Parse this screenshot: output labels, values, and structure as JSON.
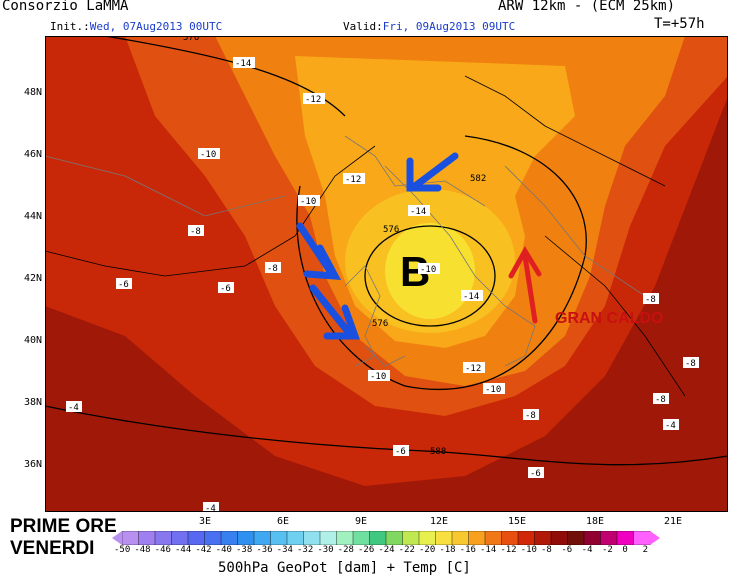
{
  "header": {
    "title": "Consorzio LaMMA",
    "model": "ARW 12km - (ECM 25km)",
    "init_label": "Init.:",
    "init_value": "Wed, 07Aug2013 00UTC",
    "valid_label": "Valid:",
    "valid_value": "Fri, 09Aug2013 09UTC",
    "forecast_step": "T=+57h"
  },
  "map": {
    "lat_labels": [
      "48N",
      "46N",
      "44N",
      "42N",
      "40N",
      "38N",
      "36N"
    ],
    "lon_labels": [
      "3E",
      "6E",
      "9E",
      "12E",
      "15E",
      "18E",
      "21E"
    ],
    "low_symbol": "B",
    "heat_label": "GRAN CALDO",
    "geopotential_labels": [
      "576",
      "576",
      "582",
      "576",
      "588"
    ],
    "temperature_labels": [
      "-14",
      "-12",
      "-10",
      "-12",
      "-10",
      "-14",
      "-8",
      "-8",
      "-6",
      "-6",
      "-10",
      "-14",
      "-12",
      "-10",
      "-10",
      "-4",
      "-4",
      "-6",
      "-8",
      "-6",
      "-8",
      "-8",
      "-4",
      "-8"
    ],
    "colors": {
      "low_core": "#f8e030",
      "ring1": "#f8c020",
      "ring2": "#f8a818",
      "mid": "#f08010",
      "warm": "#e05010",
      "hot": "#c82808",
      "hottest": "#a01808",
      "arrow_blue": "#1a50e0",
      "arrow_red": "#e02020"
    }
  },
  "note": {
    "line1": "PRIME ORE",
    "line2": "VENERDI"
  },
  "colorbar": {
    "title": "500hPa GeoPot [dam] + Temp [C]",
    "ticks": [
      "-50",
      "-48",
      "-46",
      "-44",
      "-42",
      "-40",
      "-38",
      "-36",
      "-34",
      "-32",
      "-30",
      "-28",
      "-26",
      "-24",
      "-22",
      "-20",
      "-18",
      "-16",
      "-14",
      "-12",
      "-10",
      "-8",
      "-6",
      "-4",
      "-2",
      "0",
      "2"
    ],
    "colors": [
      "#b890f0",
      "#a080f0",
      "#8878f0",
      "#7070f0",
      "#5868f0",
      "#4870f0",
      "#3880f0",
      "#3090f0",
      "#40a8f0",
      "#58c0f0",
      "#70d0f0",
      "#90e0f0",
      "#b0f0e8",
      "#a0f0c0",
      "#70e0a0",
      "#40c880",
      "#80d860",
      "#c0e850",
      "#e8f050",
      "#f8e040",
      "#f8c830",
      "#f8a020",
      "#f07818",
      "#e85010",
      "#d02808",
      "#b01808",
      "#900c08",
      "#701008",
      "#900030",
      "#c00070",
      "#f000c0",
      "#ff60ff"
    ]
  }
}
